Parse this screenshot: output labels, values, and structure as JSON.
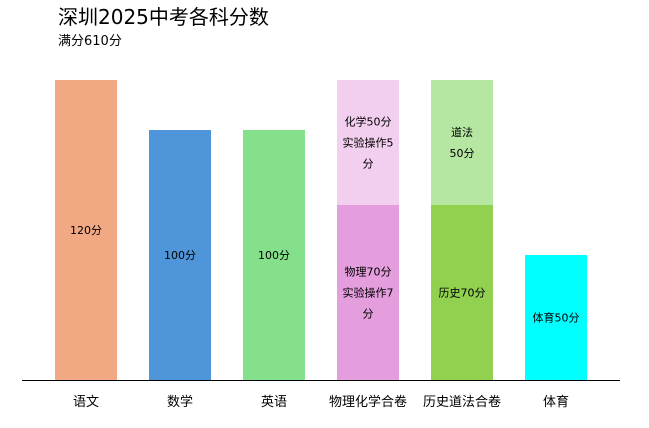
{
  "chart_data": {
    "type": "bar",
    "stacked": true,
    "title": "深圳2025中考各科分数",
    "subtitle": "满分610分",
    "xlabel": "",
    "ylabel": "",
    "ylim": [
      0,
      120
    ],
    "grid": false,
    "legend": "none",
    "categories": [
      "语文",
      "数学",
      "英语",
      "物理化学合卷",
      "历史道法合卷",
      "体育"
    ],
    "bars": [
      {
        "category": "语文",
        "segments": [
          {
            "value": 120,
            "lines": [
              "120分"
            ],
            "color": "#F0A983"
          }
        ]
      },
      {
        "category": "数学",
        "segments": [
          {
            "value": 100,
            "lines": [
              "100分"
            ],
            "color": "#4E95D9"
          }
        ]
      },
      {
        "category": "英语",
        "segments": [
          {
            "value": 100,
            "lines": [
              "100分"
            ],
            "color": "#84E08A"
          }
        ]
      },
      {
        "category": "物理化学合卷",
        "segments": [
          {
            "value": 70,
            "lines": [
              "物理70分",
              "实验操作7",
              "分"
            ],
            "color": "#E49EDD"
          },
          {
            "value": 50,
            "lines": [
              "化学50分",
              "实验操作5",
              "分"
            ],
            "color": "#F2CEEF"
          }
        ]
      },
      {
        "category": "历史道法合卷",
        "segments": [
          {
            "value": 70,
            "lines": [
              "历史70分"
            ],
            "color": "#92D050"
          },
          {
            "value": 50,
            "lines": [
              "道法",
              "50分"
            ],
            "color": "#B5E6A2"
          }
        ]
      },
      {
        "category": "体育",
        "segments": [
          {
            "value": 50,
            "lines": [
              "体育50分"
            ],
            "color": "#00FFFF"
          }
        ]
      }
    ]
  }
}
